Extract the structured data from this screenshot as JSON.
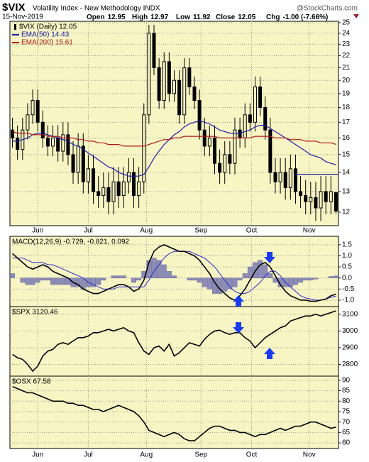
{
  "header": {
    "title": "$VIX",
    "subtitle": "Volatility Index - New Methodology INDX",
    "source": "@StockCharts.com",
    "date": "15-Nov-2019",
    "quote": [
      {
        "label": "Open",
        "value": "12.95"
      },
      {
        "label": "High",
        "value": "12.97"
      },
      {
        "label": "Low",
        "value": "11.92"
      },
      {
        "label": "Close",
        "value": "12.05"
      },
      {
        "label": "Chg",
        "value": "-1.00 (-7.66%)"
      }
    ]
  },
  "x_axis": {
    "categories": [
      null,
      null,
      null,
      null,
      null,
      null,
      null,
      null,
      null,
      null,
      null,
      null,
      null,
      null,
      null,
      null,
      null,
      null,
      null,
      null,
      null,
      null,
      null,
      null,
      null,
      null,
      null,
      null,
      null,
      null,
      null,
      null,
      null,
      null,
      null,
      null,
      null,
      null,
      null,
      null,
      null,
      null,
      null,
      null,
      null,
      null,
      null,
      null,
      null,
      null,
      null,
      null,
      null,
      null,
      null,
      null,
      null,
      null,
      null,
      null,
      null,
      null,
      null,
      null,
      null
    ],
    "month_ticks": [
      {
        "value": 5,
        "label": "Jun"
      },
      {
        "value": 15,
        "label": "Jul"
      },
      {
        "value": 26.5,
        "label": "Aug"
      },
      {
        "value": 37.3,
        "label": "Sep"
      },
      {
        "value": 47.3,
        "label": "Oct"
      },
      {
        "value": 58.7,
        "label": "Nov"
      }
    ],
    "grid": true
  },
  "chart_data": [
    {
      "type": "candlestick",
      "name": "$VIX (Daily) 12.05",
      "color": "#000000",
      "log_scale": true,
      "ylim": [
        11.39,
        25.14
      ],
      "yticks": [
        12,
        13,
        14,
        15,
        16,
        17,
        18,
        19,
        20,
        21,
        22,
        23,
        24,
        25
      ],
      "open": [
        16.5,
        16.0,
        15.3,
        16.5,
        17.5,
        18.5,
        17.0,
        16.0,
        15.5,
        16.0,
        15.2,
        16.2,
        15.0,
        14.0,
        15.5,
        13.5,
        14.2,
        13.0,
        12.8,
        13.2,
        12.5,
        13.5,
        12.8,
        13.5,
        14.0,
        12.8,
        13.5,
        17.5,
        24.0,
        21.0,
        18.5,
        21.5,
        19.0,
        20.0,
        17.5,
        21.0,
        19.5,
        18.5,
        16.5,
        15.5,
        16.0,
        14.5,
        14.0,
        15.0,
        14.5,
        16.5,
        16.0,
        17.5,
        17.0,
        19.5,
        18.0,
        16.5,
        14.0,
        13.5,
        14.0,
        13.2,
        14.2,
        13.0,
        12.8,
        12.5,
        12.7,
        12.2,
        13.0,
        12.5,
        12.95
      ],
      "high": [
        17.3,
        16.8,
        17.3,
        18.3,
        19.3,
        19.3,
        17.8,
        16.8,
        16.8,
        16.8,
        17.0,
        17.0,
        15.8,
        16.3,
        16.3,
        15.0,
        15.0,
        13.8,
        14.0,
        14.0,
        14.3,
        14.3,
        14.3,
        14.8,
        14.8,
        14.3,
        18.3,
        24.8,
        24.8,
        21.8,
        22.3,
        22.3,
        20.8,
        20.8,
        21.8,
        21.8,
        20.3,
        19.3,
        17.3,
        16.8,
        16.8,
        15.3,
        15.8,
        15.8,
        17.3,
        17.3,
        18.3,
        18.3,
        20.3,
        20.3,
        18.8,
        17.3,
        14.8,
        14.8,
        14.8,
        15.0,
        15.0,
        13.8,
        13.6,
        13.5,
        13.5,
        13.8,
        13.8,
        13.8,
        12.97
      ],
      "low": [
        15.4,
        14.7,
        14.7,
        15.9,
        16.9,
        16.4,
        15.4,
        14.9,
        14.9,
        14.6,
        14.6,
        14.4,
        13.4,
        13.4,
        12.9,
        12.9,
        12.4,
        12.2,
        12.2,
        11.9,
        11.9,
        12.2,
        12.2,
        12.9,
        12.2,
        12.2,
        12.9,
        16.9,
        20.4,
        17.9,
        17.9,
        18.4,
        18.4,
        16.9,
        16.9,
        18.9,
        17.9,
        15.9,
        14.9,
        14.9,
        13.9,
        13.4,
        13.4,
        13.9,
        13.9,
        15.4,
        15.4,
        16.4,
        16.4,
        17.4,
        15.9,
        13.4,
        12.9,
        12.9,
        12.6,
        12.6,
        12.4,
        12.2,
        11.9,
        11.9,
        11.6,
        11.6,
        11.9,
        11.9,
        11.92
      ],
      "close": [
        16.0,
        15.3,
        16.5,
        17.5,
        18.5,
        17.0,
        16.0,
        15.5,
        16.0,
        15.2,
        16.2,
        15.0,
        14.0,
        15.5,
        13.5,
        14.2,
        13.0,
        12.8,
        13.2,
        12.5,
        13.5,
        12.8,
        13.5,
        14.0,
        12.8,
        13.5,
        17.5,
        24.0,
        21.0,
        18.5,
        21.5,
        19.0,
        20.0,
        17.5,
        21.0,
        19.5,
        18.5,
        16.5,
        15.5,
        16.0,
        14.5,
        14.0,
        15.0,
        14.5,
        16.5,
        16.0,
        17.5,
        17.0,
        19.5,
        18.0,
        16.5,
        14.0,
        13.5,
        14.0,
        13.2,
        14.2,
        13.0,
        12.8,
        12.5,
        12.7,
        12.2,
        13.0,
        12.5,
        13.0,
        12.05
      ],
      "overlays": [
        {
          "name": "EMA(50) 14.43",
          "color": "#1c1ca8",
          "values": [
            15.8,
            15.8,
            15.9,
            16.0,
            16.2,
            16.3,
            16.3,
            16.2,
            16.1,
            16.0,
            15.9,
            15.8,
            15.6,
            15.5,
            15.3,
            15.1,
            14.9,
            14.7,
            14.5,
            14.3,
            14.2,
            14.0,
            13.9,
            13.8,
            13.8,
            13.8,
            13.9,
            14.3,
            14.8,
            15.2,
            15.6,
            15.9,
            16.2,
            16.4,
            16.7,
            16.9,
            17.0,
            17.1,
            17.0,
            16.9,
            16.7,
            16.5,
            16.4,
            16.3,
            16.3,
            16.3,
            16.4,
            16.5,
            16.7,
            16.8,
            16.8,
            16.6,
            16.4,
            16.2,
            16.0,
            15.8,
            15.6,
            15.4,
            15.2,
            15.0,
            14.9,
            14.8,
            14.6,
            14.5,
            14.43
          ]
        },
        {
          "name": "EMA(200) 15.61",
          "color": "#b01818",
          "values": [
            16.4,
            16.3,
            16.3,
            16.3,
            16.2,
            16.2,
            16.2,
            16.1,
            16.1,
            16.1,
            16.0,
            16.0,
            16.0,
            15.9,
            15.9,
            15.8,
            15.8,
            15.7,
            15.7,
            15.6,
            15.6,
            15.6,
            15.5,
            15.5,
            15.5,
            15.5,
            15.5,
            15.6,
            15.7,
            15.8,
            15.9,
            15.9,
            16.0,
            16.0,
            16.1,
            16.1,
            16.1,
            16.1,
            16.1,
            16.1,
            16.1,
            16.0,
            16.0,
            16.0,
            16.0,
            16.0,
            16.0,
            16.0,
            16.1,
            16.1,
            16.1,
            16.1,
            16.0,
            16.0,
            16.0,
            15.9,
            15.9,
            15.9,
            15.8,
            15.8,
            15.8,
            15.7,
            15.7,
            15.7,
            15.61
          ]
        }
      ],
      "hline": {
        "value": 13.9,
        "start": 56,
        "color": "#1c1ca8"
      }
    },
    {
      "type": "macd",
      "title": "MACD(12,26,9) -0.729, -0.821, 0.092",
      "ylim": [
        -1.29,
        1.88
      ],
      "yticks": [
        1.5,
        {
          "value": 1.0,
          "label": "1.0"
        },
        0.5,
        {
          "value": 0.0,
          "label": "0.0"
        },
        -0.5,
        {
          "value": -1.0,
          "label": "-1.0"
        }
      ],
      "macd": {
        "color": "#000000",
        "values": [
          1.1,
          0.9,
          0.7,
          0.5,
          0.4,
          0.5,
          0.6,
          0.5,
          0.3,
          0.2,
          0.1,
          0.0,
          -0.2,
          -0.3,
          -0.5,
          -0.6,
          -0.7,
          -0.7,
          -0.6,
          -0.5,
          -0.4,
          -0.3,
          -0.3,
          -0.4,
          -0.6,
          -0.5,
          -0.1,
          0.7,
          1.2,
          1.4,
          1.5,
          1.4,
          1.3,
          1.2,
          1.2,
          1.1,
          1.0,
          0.8,
          0.5,
          0.2,
          -0.2,
          -0.5,
          -0.7,
          -0.9,
          -1.0,
          -0.8,
          -0.5,
          -0.1,
          0.3,
          0.6,
          0.7,
          0.5,
          0.1,
          -0.3,
          -0.6,
          -0.8,
          -0.9,
          -1.0,
          -1.0,
          -1.05,
          -1.05,
          -1.0,
          -0.95,
          -0.8,
          -0.729
        ]
      },
      "signal": {
        "color": "#2a2ad0",
        "values": [
          0.9,
          0.9,
          0.9,
          0.8,
          0.7,
          0.7,
          0.7,
          0.6,
          0.6,
          0.5,
          0.4,
          0.3,
          0.2,
          0.1,
          0.0,
          -0.2,
          -0.3,
          -0.4,
          -0.5,
          -0.5,
          -0.5,
          -0.4,
          -0.4,
          -0.4,
          -0.4,
          -0.4,
          -0.4,
          -0.1,
          0.3,
          0.6,
          0.9,
          1.1,
          1.2,
          1.2,
          1.2,
          1.2,
          1.1,
          1.0,
          0.9,
          0.7,
          0.5,
          0.2,
          -0.1,
          -0.4,
          -0.6,
          -0.7,
          -0.7,
          -0.6,
          -0.4,
          -0.2,
          0.1,
          0.3,
          0.3,
          0.1,
          -0.2,
          -0.4,
          -0.6,
          -0.8,
          -0.9,
          -0.95,
          -1.0,
          -1.0,
          -0.95,
          -0.87,
          -0.821
        ]
      },
      "histogram": {
        "color": "#8c8cb8",
        "values": [
          0.2,
          0.0,
          -0.2,
          -0.3,
          -0.3,
          -0.2,
          -0.1,
          -0.1,
          -0.3,
          -0.3,
          -0.3,
          -0.3,
          -0.4,
          -0.4,
          -0.5,
          -0.4,
          -0.4,
          -0.3,
          -0.1,
          0.0,
          0.1,
          0.1,
          0.1,
          0.0,
          -0.2,
          -0.1,
          0.3,
          0.8,
          0.9,
          0.8,
          0.6,
          0.3,
          0.1,
          0.0,
          0.0,
          -0.1,
          -0.1,
          -0.2,
          -0.4,
          -0.5,
          -0.7,
          -0.7,
          -0.6,
          -0.5,
          -0.4,
          -0.1,
          0.2,
          0.5,
          0.7,
          0.8,
          0.6,
          0.2,
          -0.2,
          -0.4,
          -0.4,
          -0.4,
          -0.3,
          -0.2,
          -0.1,
          -0.1,
          -0.05,
          0.0,
          0.0,
          0.07,
          0.092
        ]
      }
    },
    {
      "type": "line",
      "title": "$SPX 3120.46",
      "color": "#000000",
      "ylim": [
        2730,
        3146
      ],
      "yticks": [
        2800,
        2900,
        3000,
        3100
      ],
      "values": [
        2860,
        2840,
        2830,
        2800,
        2760,
        2790,
        2850,
        2880,
        2890,
        2920,
        2930,
        2920,
        2940,
        2960,
        2960,
        2970,
        2990,
        2990,
        3000,
        3010,
        3000,
        3010,
        3020,
        3000,
        2990,
        2930,
        2880,
        2860,
        2900,
        2910,
        2880,
        2920,
        2850,
        2870,
        2900,
        2930,
        2920,
        2910,
        2950,
        2980,
        3000,
        3005,
        2990,
        2980,
        2990,
        2990,
        2960,
        2940,
        2900,
        2930,
        2960,
        2980,
        3000,
        3020,
        3030,
        3060,
        3070,
        3080,
        3090,
        3090,
        3100,
        3090,
        3100,
        3110,
        3120.46
      ]
    },
    {
      "type": "line",
      "title": "$OSX 67.58",
      "color": "#000000",
      "ylim": [
        57.3,
        92
      ],
      "yticks": [
        60,
        65,
        70,
        75,
        80,
        85,
        90
      ],
      "values": [
        87,
        86,
        85,
        84,
        84,
        83,
        82,
        81,
        80,
        80,
        80,
        79,
        79,
        78,
        78,
        77,
        76,
        76,
        75,
        76,
        77,
        78,
        77,
        76,
        75,
        73,
        70,
        66,
        65,
        64,
        63,
        64,
        65,
        64,
        62,
        61,
        61,
        63,
        65,
        67,
        68,
        68,
        67,
        66,
        66,
        65,
        65,
        64,
        63,
        64,
        64,
        65,
        66,
        67,
        66,
        67,
        68,
        68,
        69,
        70,
        70,
        69,
        68,
        67,
        67.58
      ]
    }
  ]
}
